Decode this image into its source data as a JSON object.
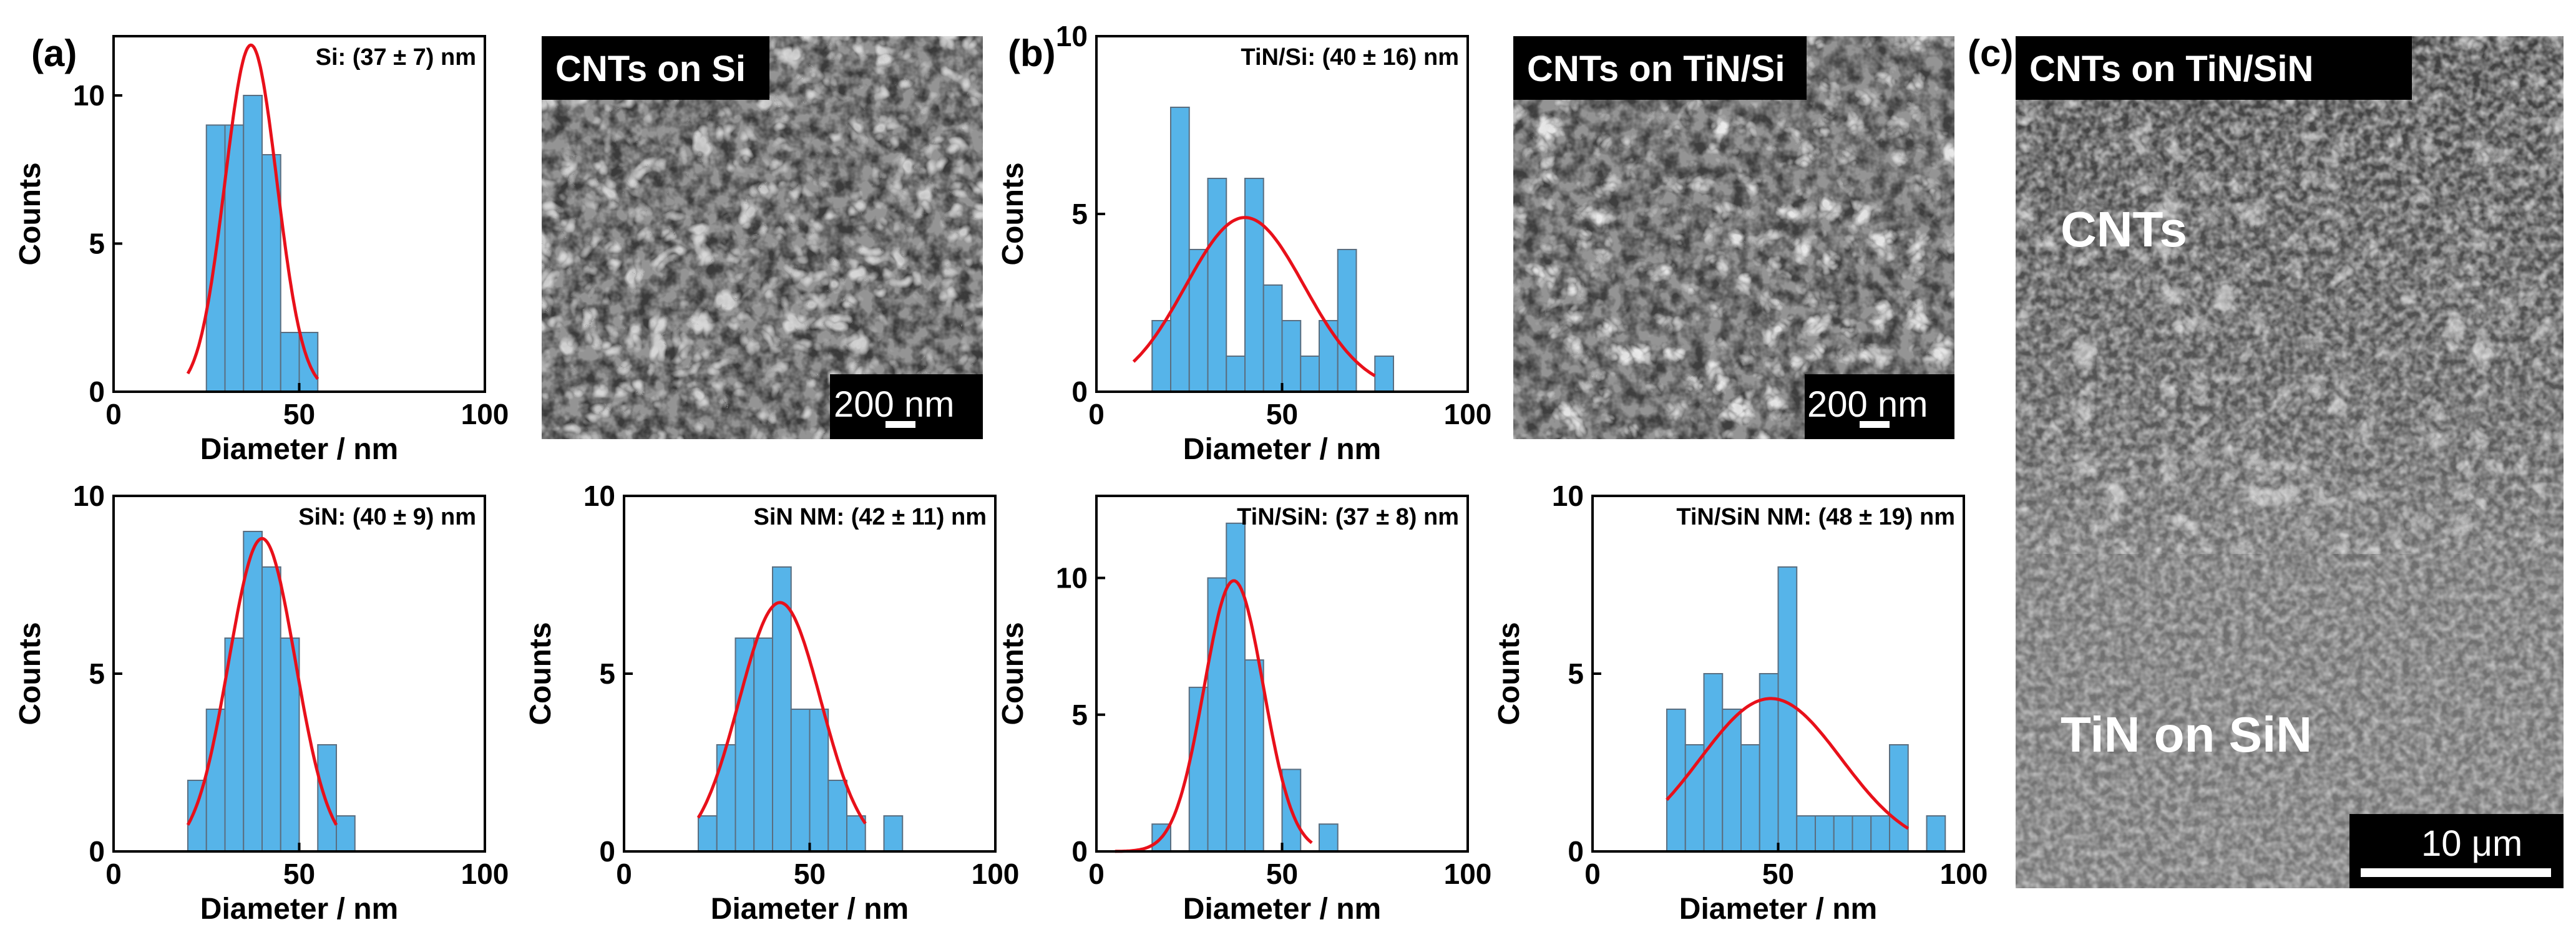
{
  "figure": {
    "panel_labels": [
      "(a)",
      "(b)",
      "(c)"
    ],
    "sem_images": [
      {
        "title": "CNTs on Si",
        "scale_bar": "200 nm"
      },
      {
        "title": "CNTs on TiN/Si",
        "scale_bar": "200 nm"
      },
      {
        "title": "CNTs on TiN/SiN",
        "scale_bar": "10 μm",
        "region_labels": [
          "CNTs",
          "TiN on SiN"
        ]
      }
    ]
  },
  "colors": {
    "bar_fill": "#56B4E9",
    "bar_edge": "#5a6e80",
    "fit_line": "#e8101a"
  },
  "chart_data": [
    {
      "type": "bar",
      "title": "Si: (37 ± 7) nm",
      "xlabel": "Diameter / nm",
      "ylabel": "Counts",
      "xlim": [
        0,
        100
      ],
      "ylim": [
        0,
        12
      ],
      "xticks": [
        0,
        50,
        100
      ],
      "yticks": [
        0,
        5,
        10
      ],
      "bin_width": 5,
      "bins": [
        [
          25,
          9
        ],
        [
          30,
          9
        ],
        [
          35,
          10
        ],
        [
          40,
          8
        ],
        [
          45,
          2
        ],
        [
          50,
          2
        ]
      ],
      "fit": {
        "mean": 37,
        "sigma": 7,
        "amplitude": 11.7,
        "range": [
          20,
          55
        ]
      }
    },
    {
      "type": "bar",
      "title": "TiN/Si: (40 ± 16) nm",
      "xlabel": "Diameter / nm",
      "ylabel": "Counts",
      "xlim": [
        0,
        100
      ],
      "ylim": [
        0,
        10
      ],
      "xticks": [
        0,
        50,
        100
      ],
      "yticks": [
        0,
        5,
        10
      ],
      "bin_width": 5,
      "bins": [
        [
          15,
          2
        ],
        [
          20,
          8
        ],
        [
          25,
          4
        ],
        [
          30,
          6
        ],
        [
          35,
          1
        ],
        [
          40,
          6
        ],
        [
          45,
          3
        ],
        [
          50,
          2
        ],
        [
          55,
          1
        ],
        [
          60,
          2
        ],
        [
          65,
          4
        ],
        [
          70,
          0
        ],
        [
          75,
          1
        ]
      ],
      "fit": {
        "mean": 40,
        "sigma": 16,
        "amplitude": 4.9,
        "range": [
          10,
          75
        ]
      }
    },
    {
      "type": "bar",
      "title": "SiN: (40 ± 9) nm",
      "xlabel": "Diameter / nm",
      "ylabel": "Counts",
      "xlim": [
        0,
        100
      ],
      "ylim": [
        0,
        10
      ],
      "xticks": [
        0,
        50,
        100
      ],
      "yticks": [
        0,
        5,
        10
      ],
      "bin_width": 5,
      "bins": [
        [
          20,
          2
        ],
        [
          25,
          4
        ],
        [
          30,
          6
        ],
        [
          35,
          9
        ],
        [
          40,
          8
        ],
        [
          45,
          6
        ],
        [
          50,
          0
        ],
        [
          55,
          3
        ],
        [
          60,
          1
        ]
      ],
      "fit": {
        "mean": 40,
        "sigma": 9,
        "amplitude": 8.8,
        "range": [
          20,
          60
        ]
      }
    },
    {
      "type": "bar",
      "title": "SiN NM: (42 ± 11) nm",
      "xlabel": "Diameter / nm",
      "ylabel": "Counts",
      "xlim": [
        0,
        100
      ],
      "ylim": [
        0,
        10
      ],
      "xticks": [
        0,
        50,
        100
      ],
      "yticks": [
        0,
        5,
        10
      ],
      "bin_width": 5,
      "bins": [
        [
          20,
          1
        ],
        [
          25,
          3
        ],
        [
          30,
          6
        ],
        [
          35,
          6
        ],
        [
          40,
          8
        ],
        [
          45,
          4
        ],
        [
          50,
          4
        ],
        [
          55,
          2
        ],
        [
          60,
          1
        ],
        [
          65,
          0
        ],
        [
          70,
          1
        ]
      ],
      "fit": {
        "mean": 42,
        "sigma": 11,
        "amplitude": 7.0,
        "range": [
          20,
          65
        ]
      }
    },
    {
      "type": "bar",
      "title": "TiN/SiN: (37 ± 8) nm",
      "xlabel": "Diameter / nm",
      "ylabel": "Counts",
      "xlim": [
        0,
        100
      ],
      "ylim": [
        0,
        13
      ],
      "xticks": [
        0,
        50,
        100
      ],
      "yticks": [
        0,
        5,
        10
      ],
      "bin_width": 5,
      "bins": [
        [
          15,
          1
        ],
        [
          20,
          0
        ],
        [
          25,
          6
        ],
        [
          30,
          10
        ],
        [
          35,
          12
        ],
        [
          40,
          7
        ],
        [
          45,
          0
        ],
        [
          50,
          3
        ],
        [
          55,
          0
        ],
        [
          60,
          1
        ]
      ],
      "fit": {
        "mean": 37,
        "sigma": 8,
        "amplitude": 9.9,
        "range": [
          5,
          58
        ]
      }
    },
    {
      "type": "bar",
      "title": "TiN/SiN NM: (48 ± 19) nm",
      "xlabel": "Diameter / nm",
      "ylabel": "Counts",
      "xlim": [
        0,
        100
      ],
      "ylim": [
        0,
        10
      ],
      "xticks": [
        0,
        50,
        100
      ],
      "yticks": [
        0,
        5,
        10
      ],
      "bin_width": 5,
      "bins": [
        [
          20,
          4
        ],
        [
          25,
          3
        ],
        [
          30,
          5
        ],
        [
          35,
          4
        ],
        [
          40,
          3
        ],
        [
          45,
          5
        ],
        [
          50,
          8
        ],
        [
          55,
          1
        ],
        [
          60,
          1
        ],
        [
          65,
          1
        ],
        [
          70,
          1
        ],
        [
          75,
          1
        ],
        [
          80,
          3
        ],
        [
          85,
          0
        ],
        [
          90,
          1
        ]
      ],
      "fit": {
        "mean": 48,
        "sigma": 19,
        "amplitude": 4.3,
        "range": [
          20,
          85
        ]
      }
    }
  ]
}
